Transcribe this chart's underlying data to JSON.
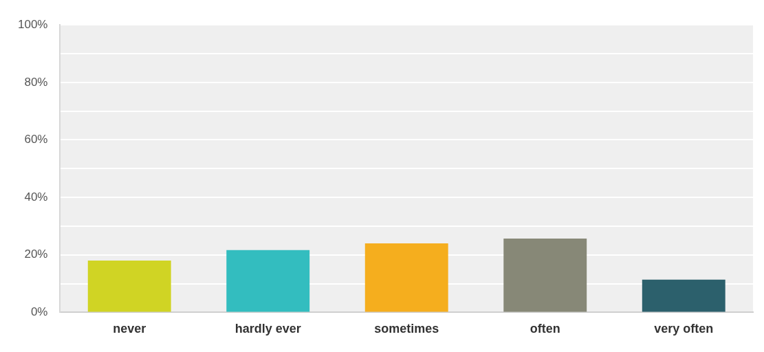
{
  "chart_data": {
    "type": "bar",
    "categories": [
      "never",
      "hardly ever",
      "sometimes",
      "often",
      "very often"
    ],
    "values": [
      18,
      21.7,
      24,
      25.7,
      11.4
    ],
    "colors": [
      "#d0d424",
      "#33bdbf",
      "#f5ae1e",
      "#878877",
      "#2c606c"
    ],
    "ylim": [
      0,
      100
    ],
    "yticks": [
      {
        "value": 0,
        "label": "0%"
      },
      {
        "value": 10,
        "label": null
      },
      {
        "value": 20,
        "label": "20%"
      },
      {
        "value": 30,
        "label": null
      },
      {
        "value": 40,
        "label": "40%"
      },
      {
        "value": 50,
        "label": null
      },
      {
        "value": 60,
        "label": "60%"
      },
      {
        "value": 70,
        "label": null
      },
      {
        "value": 80,
        "label": "80%"
      },
      {
        "value": 90,
        "label": null
      },
      {
        "value": 100,
        "label": "100%"
      }
    ],
    "grid": "y",
    "legend": false
  }
}
